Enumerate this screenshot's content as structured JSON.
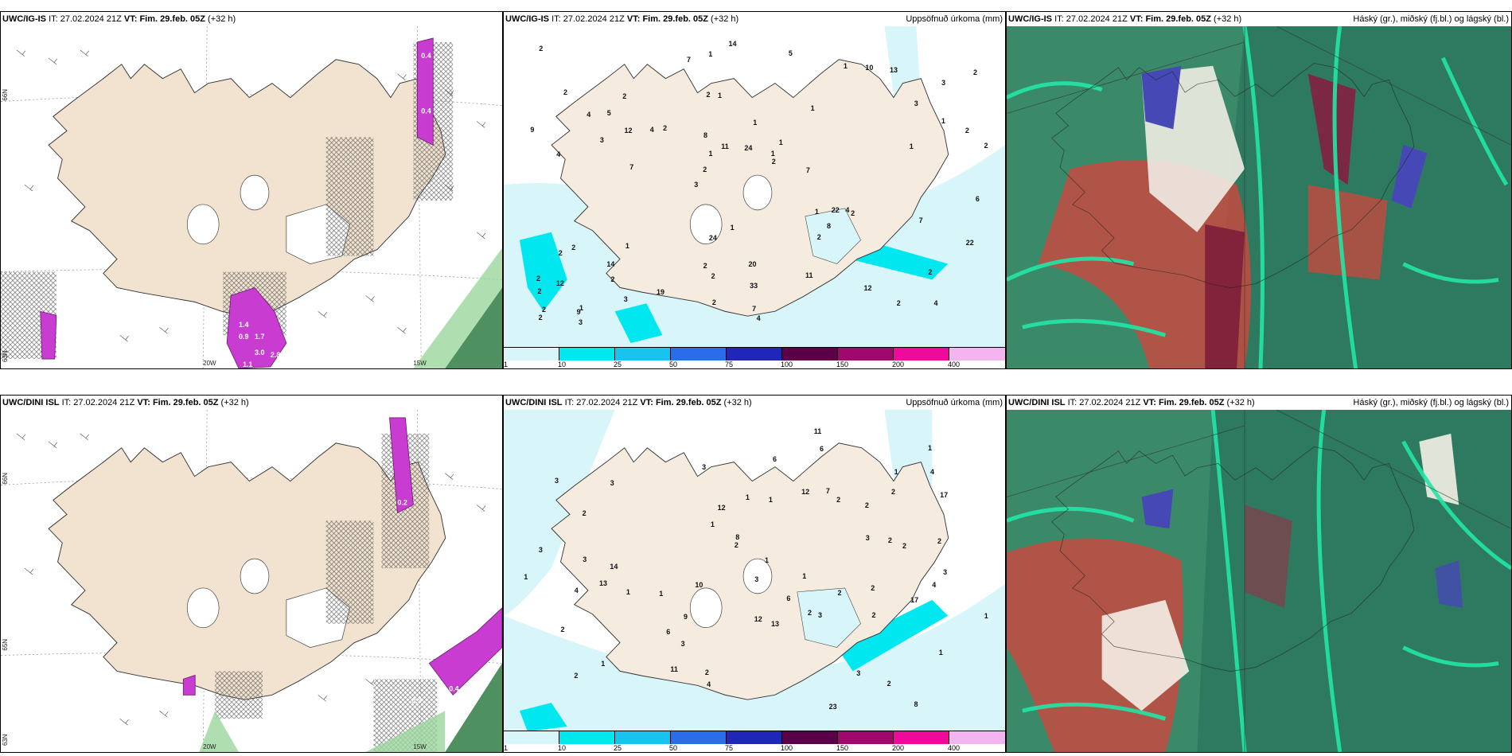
{
  "panels": {
    "p1": {
      "model": "UWC/IG-IS",
      "it_label": "IT:",
      "it": "27.02.2024 21Z",
      "vt_label": "VT:",
      "vt": "Fim. 29.feb. 05Z",
      "lead": "(+32 h)",
      "right_title": ""
    },
    "p2": {
      "model": "UWC/IG-IS",
      "it_label": "IT:",
      "it": "27.02.2024 21Z",
      "vt_label": "VT:",
      "vt": "Fim. 29.feb. 05Z",
      "lead": "(+32 h)",
      "right_title": "Uppsöfnuð úrkoma (mm)"
    },
    "p3": {
      "model": "UWC/IG-IS",
      "it_label": "IT:",
      "it": "27.02.2024 21Z",
      "vt_label": "VT:",
      "vt": "Fim. 29.feb. 05Z",
      "lead": "(+32 h)",
      "right_title": "Háský (gr.), miðský (fj.bl.) og lágský (bl.)"
    },
    "p4": {
      "model": "UWC/DINI ISL",
      "it_label": "IT:",
      "it": "27.02.2024 21Z",
      "vt_label": "VT:",
      "vt": "Fim. 29.feb. 05Z",
      "lead": "(+32 h)",
      "right_title": ""
    },
    "p5": {
      "model": "UWC/DINI ISL",
      "it_label": "IT:",
      "it": "27.02.2024 21Z",
      "vt_label": "VT:",
      "vt": "Fim. 29.feb. 05Z",
      "lead": "(+32 h)",
      "right_title": "Uppsöfnuð úrkoma (mm)"
    },
    "p6": {
      "model": "UWC/DINI ISL",
      "it_label": "IT:",
      "it": "27.02.2024 21Z",
      "vt_label": "VT:",
      "vt": "Fim. 29.feb. 05Z",
      "lead": "(+32 h)",
      "right_title": "Háský (gr.), miðský (fj.bl.) og lágský (bl.)"
    }
  },
  "coords": {
    "lat66": "66N",
    "lat65": "65N",
    "lat63": "63N",
    "lon20": "20W",
    "lon15": "15W"
  },
  "colorbar": {
    "ticks": [
      "1",
      "10",
      "25",
      "50",
      "75",
      "100",
      "150",
      "200",
      "400"
    ],
    "colors": [
      "#d8f6fa",
      "#00e7f0",
      "#18c3ef",
      "#2b6de8",
      "#2026b8",
      "#5a0048",
      "#a0086e",
      "#f00a9c",
      "#f4b4f0"
    ]
  },
  "precip_labels_top": [
    "4",
    "4",
    "3",
    "3",
    "1",
    "1",
    "2",
    "1",
    "2",
    "2",
    "2",
    "2",
    "1",
    "1",
    "2",
    "2",
    "1",
    "2",
    "1",
    "1",
    "2",
    "2",
    "1",
    "2",
    "1",
    "1",
    "2",
    "2",
    "4",
    "4",
    "4",
    "3",
    "2",
    "3",
    "2",
    "1",
    "2",
    "2",
    "2",
    "2",
    "3",
    "2",
    "8",
    "11",
    "14",
    "3",
    "2",
    "20",
    "13",
    "14",
    "7",
    "9",
    "5",
    "10",
    "9",
    "5",
    "7",
    "11",
    "22",
    "24",
    "19",
    "22",
    "12",
    "2",
    "2",
    "4",
    "6",
    "8",
    "33",
    "24",
    "12",
    "7",
    "7",
    "2",
    "1",
    "1",
    "12",
    "7"
  ],
  "precip_labels_bottom": [
    "8",
    "13",
    "2",
    "3",
    "1",
    "2",
    "1",
    "1",
    "2",
    "1",
    "2",
    "2",
    "3",
    "3",
    "1",
    "2",
    "2",
    "1",
    "3",
    "2",
    "1",
    "1",
    "2",
    "1",
    "3",
    "3",
    "1",
    "3",
    "2",
    "4",
    "3",
    "4",
    "6",
    "7",
    "12",
    "17",
    "4",
    "3",
    "1",
    "23",
    "9",
    "13",
    "11",
    "11",
    "10",
    "14",
    "17",
    "6",
    "12",
    "12",
    "2",
    "2",
    "2",
    "2",
    "1",
    "1",
    "4",
    "8",
    "6",
    "3",
    "2",
    "2",
    "3",
    "6"
  ],
  "wind_values_top": [
    "1.4",
    "0.9",
    "1.7",
    "3.0",
    "2.8",
    "1.1",
    "0.4",
    "0.4"
  ],
  "wind_values_bottom": [
    "0.4",
    "0.3",
    "0.6",
    "0.2"
  ]
}
